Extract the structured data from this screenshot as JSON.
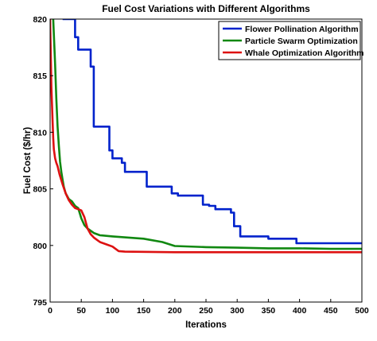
{
  "chart_data": {
    "type": "line",
    "title": "Fuel Cost Variations with Different Algorithms",
    "xlabel": "Iterations",
    "ylabel": "Fuel Cost ($/hr)",
    "xlim": [
      0,
      500
    ],
    "ylim": [
      795,
      820
    ],
    "xticks": [
      0,
      50,
      100,
      150,
      200,
      250,
      300,
      350,
      400,
      450,
      500
    ],
    "yticks": [
      795,
      800,
      805,
      810,
      815,
      820
    ],
    "grid": false,
    "legend_position": "top-right",
    "series": [
      {
        "name": "Flower Pollination Algorithm",
        "color": "#0022cc",
        "step": true,
        "x": [
          20,
          40,
          45,
          65,
          70,
          95,
          100,
          115,
          120,
          135,
          155,
          195,
          200,
          205,
          215,
          245,
          255,
          260,
          265,
          270,
          290,
          295,
          305,
          310,
          345,
          350,
          395,
          400,
          500
        ],
        "y": [
          820,
          818.4,
          817.3,
          815.8,
          810.5,
          808.4,
          807.7,
          807.3,
          806.5,
          806.5,
          805.2,
          804.6,
          804.6,
          804.4,
          804.4,
          803.6,
          803.5,
          803.5,
          803.2,
          803.2,
          802.9,
          801.7,
          800.8,
          800.8,
          800.8,
          800.6,
          800.2,
          800.2,
          800.2
        ]
      },
      {
        "name": "Particle Swarm Optimization",
        "color": "#118811",
        "step": false,
        "x": [
          5,
          8,
          10,
          12,
          14,
          16,
          18,
          20,
          22,
          25,
          30,
          35,
          40,
          45,
          50,
          55,
          60,
          70,
          80,
          100,
          150,
          180,
          200,
          250,
          300,
          350,
          400,
          450,
          500
        ],
        "y": [
          820,
          816,
          813,
          810.5,
          808.8,
          807.4,
          806.5,
          805.8,
          805.2,
          804.6,
          804.1,
          803.9,
          803.5,
          803.3,
          802.4,
          801.8,
          801.5,
          801.1,
          800.9,
          800.8,
          800.6,
          800.3,
          799.95,
          799.85,
          799.8,
          799.75,
          799.75,
          799.7,
          799.7
        ]
      },
      {
        "name": "Whale Optimization Algorithm",
        "color": "#dd1111",
        "step": false,
        "x": [
          0,
          2,
          4,
          5,
          6,
          8,
          10,
          12,
          15,
          20,
          25,
          30,
          35,
          40,
          45,
          50,
          55,
          60,
          65,
          70,
          75,
          80,
          90,
          100,
          110,
          120,
          200,
          300,
          400,
          500
        ],
        "y": [
          820,
          814,
          811,
          809.5,
          808.5,
          807.7,
          807.3,
          807.0,
          806.3,
          805.4,
          804.6,
          804.0,
          803.6,
          803.3,
          803.2,
          803.1,
          802.5,
          801.5,
          801.0,
          800.7,
          800.5,
          800.3,
          800.1,
          799.9,
          799.5,
          799.45,
          799.4,
          799.4,
          799.4,
          799.4
        ]
      }
    ]
  }
}
